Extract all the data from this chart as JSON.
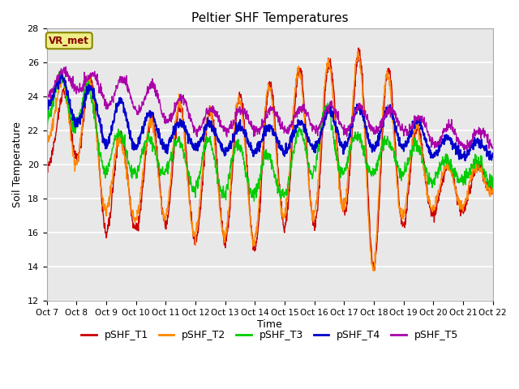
{
  "title": "Peltier SHF Temperatures",
  "xlabel": "Time",
  "ylabel": "Soil Temperature",
  "ylim": [
    12,
    28
  ],
  "yticks": [
    12,
    14,
    16,
    18,
    20,
    22,
    24,
    26,
    28
  ],
  "xtick_labels": [
    "Oct 7",
    "Oct 8",
    "Oct 9",
    "Oct 10",
    "Oct 11",
    "Oct 12",
    "Oct 13",
    "Oct 14",
    "Oct 15",
    "Oct 16",
    "Oct 17",
    "Oct 18",
    "Oct 19",
    "Oct 20",
    "Oct 21",
    "Oct 22"
  ],
  "colors": {
    "pSHF_T1": "#cc0000",
    "pSHF_T2": "#ff8800",
    "pSHF_T3": "#00cc00",
    "pSHF_T4": "#0000cc",
    "pSHF_T5": "#aa00aa"
  },
  "vr_met_box_facecolor": "#eeee88",
  "vr_met_box_edgecolor": "#888800",
  "vr_met_text_color": "#880000",
  "background_color": "#e8e8e8",
  "grid_color": "#ffffff",
  "n_days": 15,
  "pts_per_day": 96
}
